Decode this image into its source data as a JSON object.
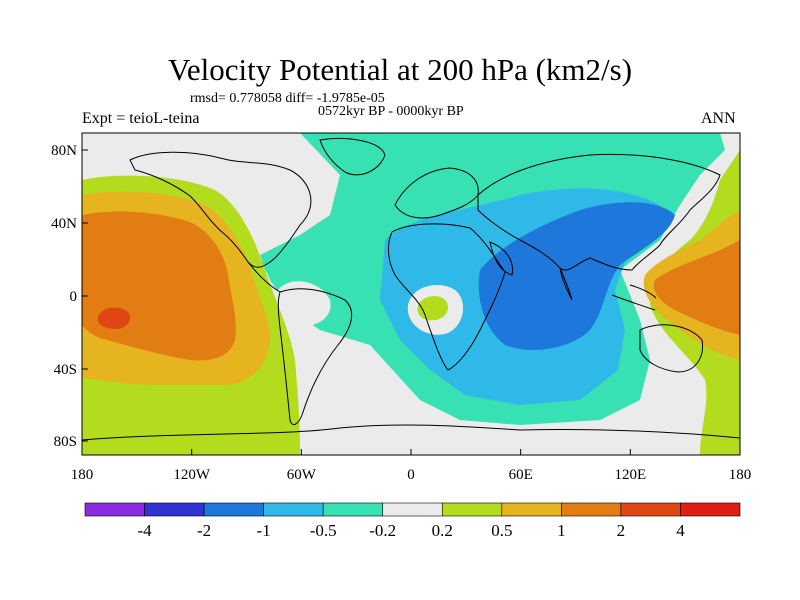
{
  "title": "Velocity Potential at 200 hPa (km2/s)",
  "stats": "rmsd= 0.778058 diff= -1.9785e-05",
  "period": "0572kyr BP - 0000kyr BP",
  "experiment": "Expt = teioL-teina",
  "season": "ANN",
  "x_ticks": [
    "180",
    "120W",
    "60W",
    "0",
    "60E",
    "120E",
    "180"
  ],
  "y_ticks": [
    "80N",
    "40N",
    "0",
    "40S",
    "80S"
  ],
  "colorbar": {
    "labels": [
      "-4",
      "-2",
      "-1",
      "-0.5",
      "-0.2",
      "0.2",
      "0.5",
      "1",
      "2",
      "4"
    ],
    "colors": [
      "#8a2be2",
      "#3232d2",
      "#1e78dc",
      "#2fb9e8",
      "#37e1b4",
      "#ebebeb",
      "#b4dc1e",
      "#e6b41e",
      "#e27d14",
      "#e04614",
      "#e01e14"
    ]
  },
  "field_colors": {
    "teal": "#37e1b4",
    "cyan": "#2fb9e8",
    "blue": "#1e78dc",
    "gray": "#ebebeb",
    "lime": "#b4dc1e",
    "gold": "#e6b41e",
    "orange": "#e27d14",
    "red": "#e04614"
  }
}
